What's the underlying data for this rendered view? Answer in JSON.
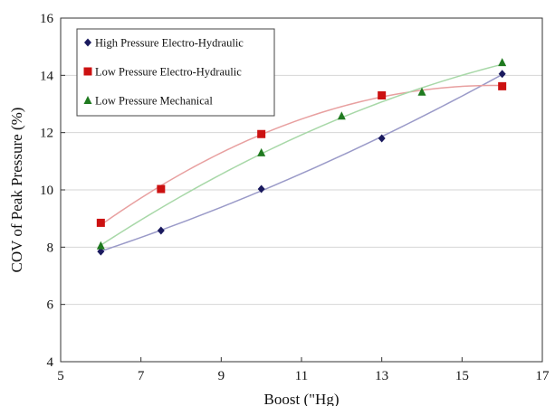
{
  "chart_data": {
    "type": "scatter",
    "xlabel": "Boost (\"Hg)",
    "ylabel": "COV of Peak Pressure (%)",
    "xlim": [
      5,
      17
    ],
    "ylim": [
      4,
      16
    ],
    "xticks": [
      5,
      7,
      9,
      11,
      13,
      15,
      17
    ],
    "yticks": [
      4,
      6,
      8,
      10,
      12,
      14,
      16
    ],
    "grid": "horizontal",
    "legend": "top-left",
    "series": [
      {
        "name": "High Pressure Electro-Hydraulic",
        "marker": "diamond",
        "color": "#1a1a5e",
        "trend_color": "#9a9ac8",
        "x": [
          6,
          7.5,
          10,
          13,
          16
        ],
        "y": [
          7.85,
          8.58,
          10.03,
          11.8,
          14.05
        ]
      },
      {
        "name": "Low Pressure Electro-Hydraulic",
        "marker": "square",
        "color": "#cc1111",
        "trend_color": "#e8a0a0",
        "x": [
          6,
          7.5,
          10,
          13,
          16
        ],
        "y": [
          8.85,
          10.03,
          11.95,
          13.3,
          13.62
        ]
      },
      {
        "name": "Low Pressure Mechanical",
        "marker": "triangle",
        "color": "#1f7a1f",
        "trend_color": "#a8d8a8",
        "x": [
          6,
          10,
          12,
          14,
          16
        ],
        "y": [
          8.05,
          11.3,
          12.58,
          13.42,
          14.45
        ]
      }
    ]
  }
}
